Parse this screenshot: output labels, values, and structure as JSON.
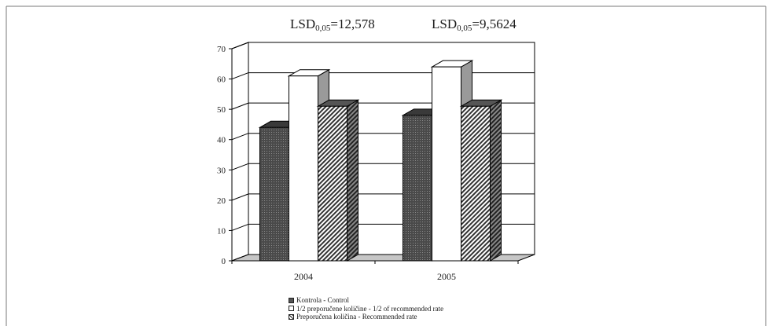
{
  "chart_data": {
    "type": "bar",
    "categories": [
      "2004",
      "2005"
    ],
    "series": [
      {
        "name": "Kontrola - Control",
        "values": [
          44,
          48
        ]
      },
      {
        "name": "1/2 preporučene količine - 1/2 of recommended rate",
        "values": [
          61,
          64
        ]
      },
      {
        "name": "Preporučena količina - Recommended rate",
        "values": [
          51,
          51
        ]
      }
    ],
    "annotations": [
      {
        "base": "LSD",
        "sub": "0,05",
        "value": "=12,578"
      },
      {
        "base": "LSD",
        "sub": "0,05",
        "value": "=9,5624"
      }
    ],
    "yticks": [
      "0",
      "10",
      "20",
      "30",
      "40",
      "50",
      "60",
      "70"
    ],
    "ylim": [
      0,
      70
    ],
    "grid": true,
    "legend_position": "bottom",
    "colors": {
      "series": [
        "#5a5a5a",
        "#ffffff",
        "#c8c8c8"
      ],
      "frame": "#7a7a7a",
      "gridline": "#000000"
    }
  }
}
